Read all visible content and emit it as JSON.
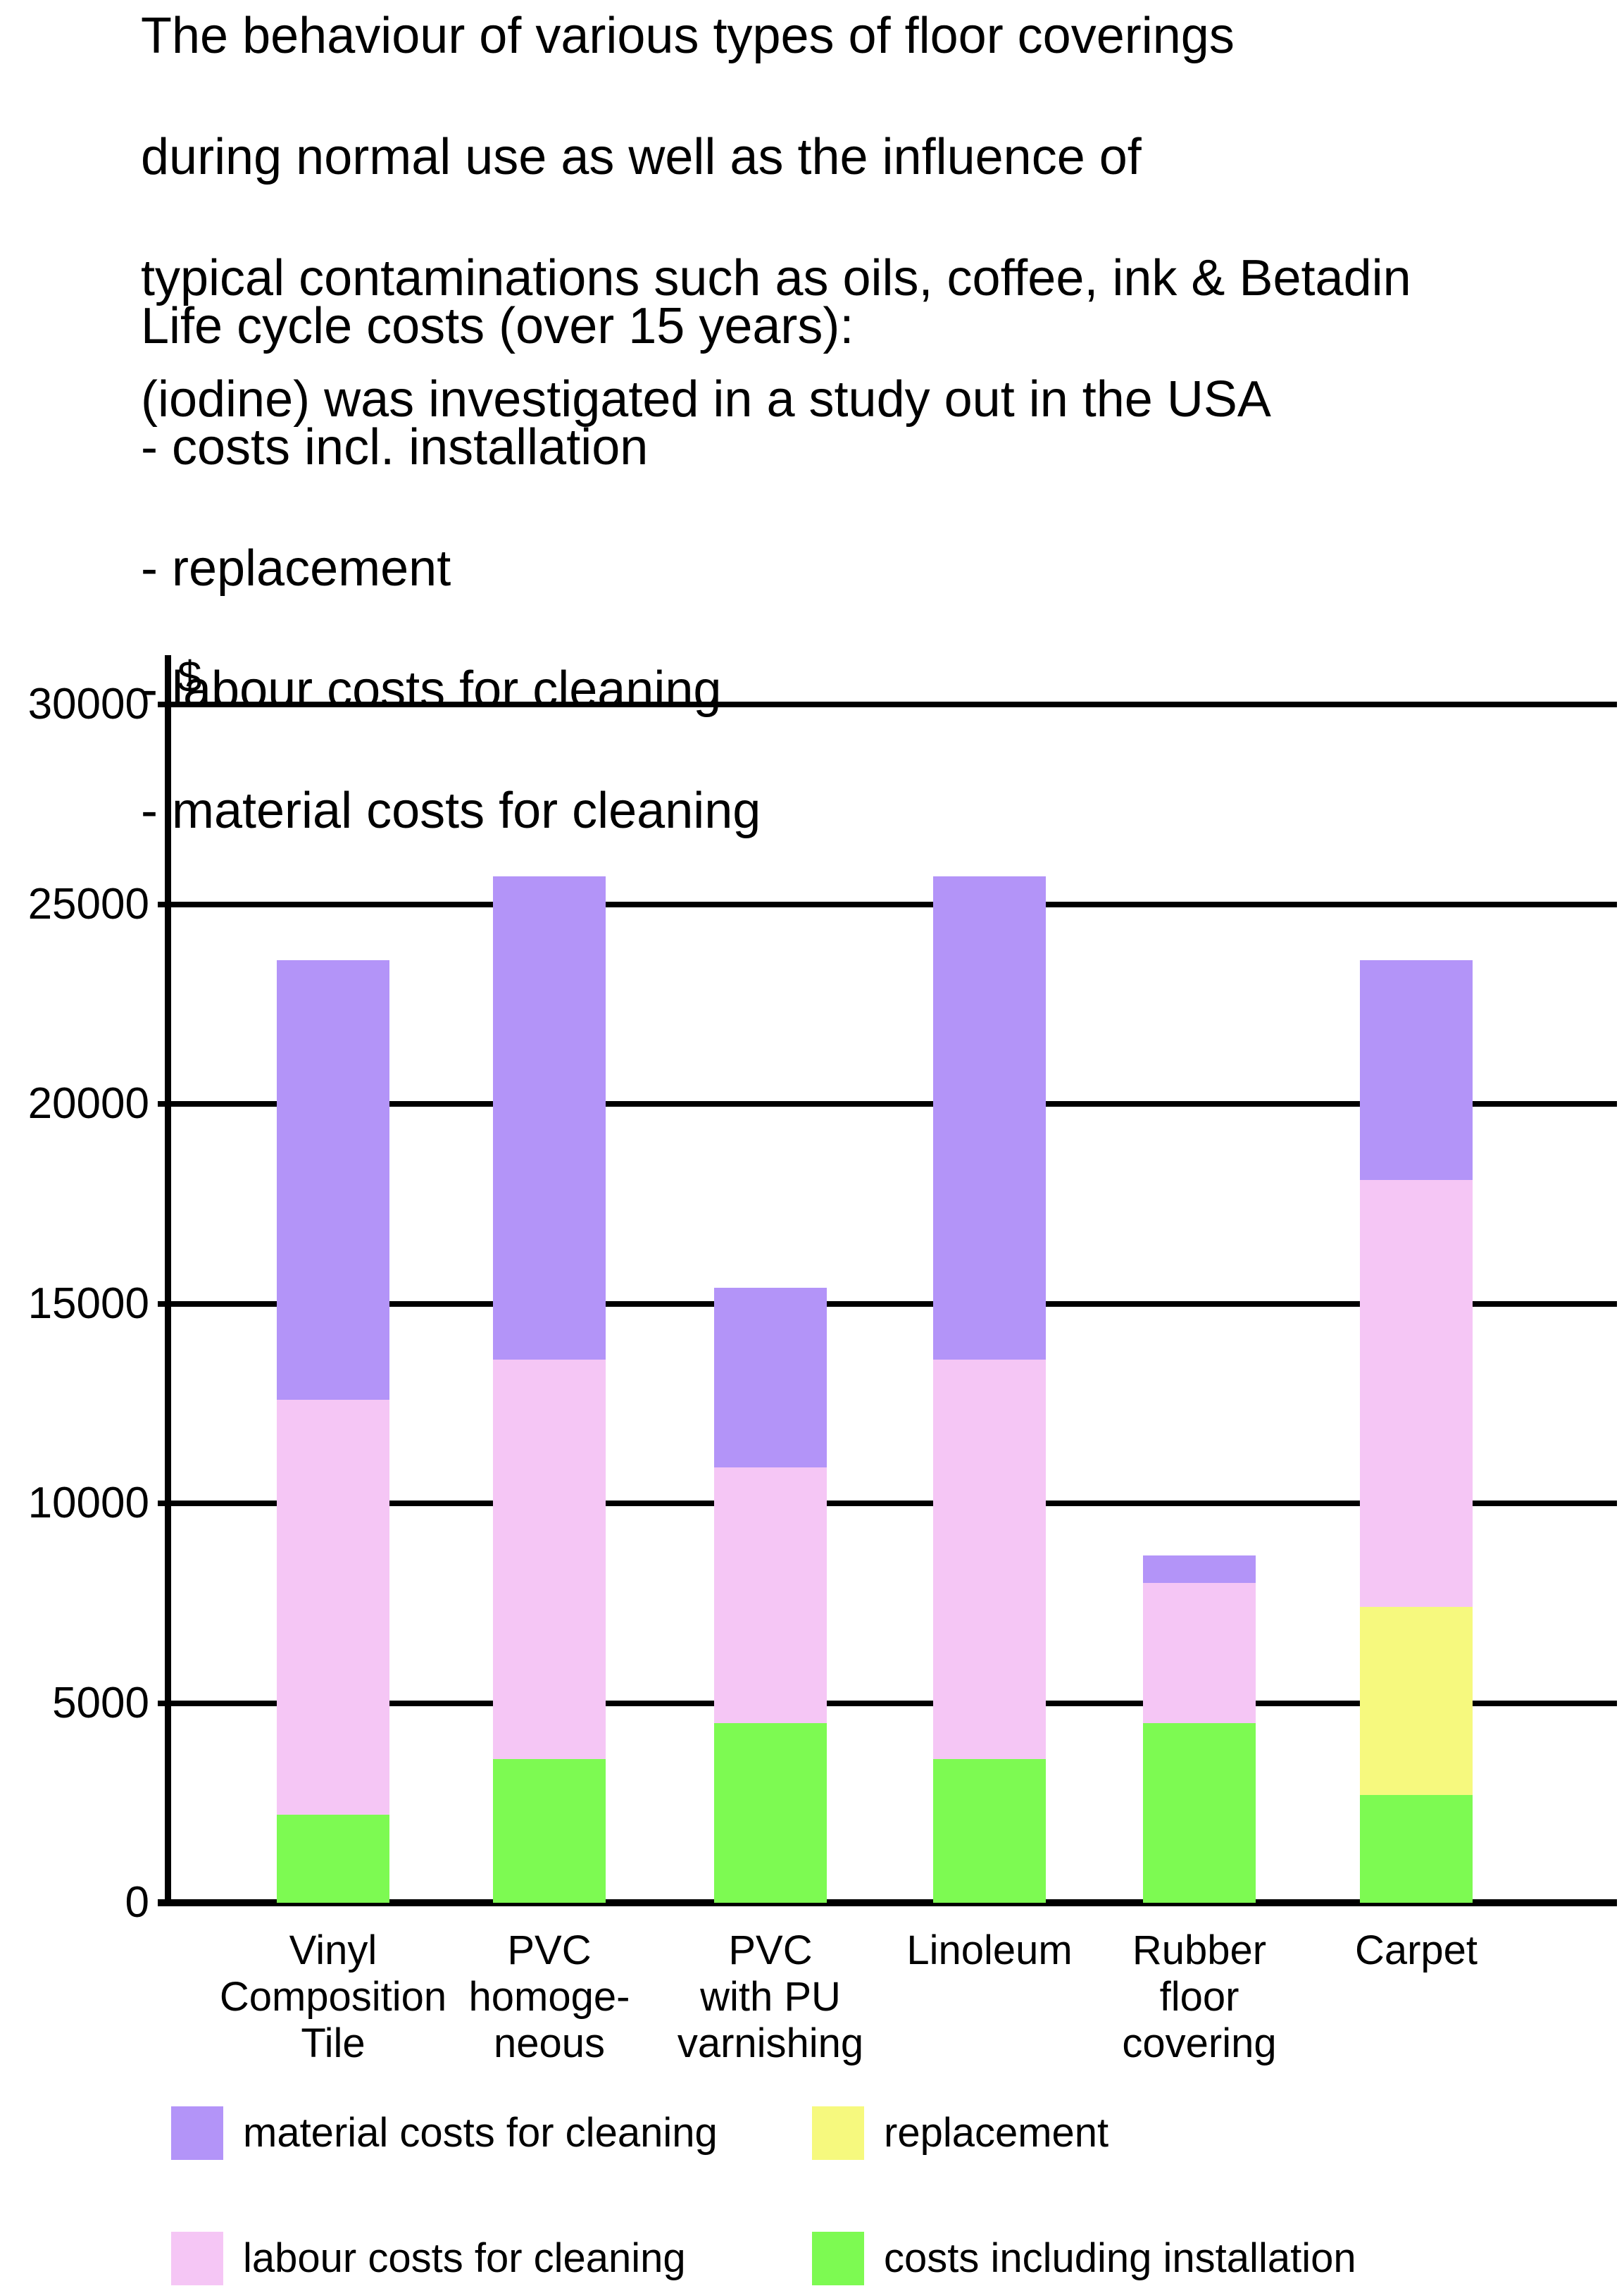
{
  "intro_text": {
    "lines": [
      "The behaviour of various types of floor coverings",
      "during normal use as well as the influence of",
      "typical contaminations such as oils, coffee, ink & Betadin",
      "(iodine) was investigated in a study out in the USA"
    ]
  },
  "costs_text": {
    "heading": "Life cycle costs (over 15 years):",
    "items": [
      "- costs incl. installation",
      "- replacement",
      "- labour costs for cleaning",
      "- material costs for cleaning"
    ]
  },
  "chart_data": {
    "type": "bar",
    "stacked": true,
    "title": "",
    "xlabel": "",
    "ylabel": "$",
    "ylim": [
      0,
      30000
    ],
    "ytick_step": 5000,
    "yticks": [
      0,
      5000,
      10000,
      15000,
      20000,
      25000,
      30000
    ],
    "grid": true,
    "legend_position": "bottom",
    "categories": [
      "Vinyl Composition Tile",
      "PVC homogeneous",
      "PVC with PU varnishing",
      "Linoleum",
      "Rubber floor covering",
      "Carpet"
    ],
    "category_label_lines": [
      [
        "Vinyl",
        "Composition",
        "Tile"
      ],
      [
        "PVC",
        "homoge-",
        "neous"
      ],
      [
        "PVC",
        "with PU",
        "varnishing"
      ],
      [
        "Linoleum"
      ],
      [
        "Rubber",
        "floor",
        "covering"
      ],
      [
        "Carpet"
      ]
    ],
    "series": [
      {
        "name": "costs including installation",
        "color": "#7dfa52",
        "values": [
          2200,
          3600,
          4500,
          3600,
          4500,
          2700
        ]
      },
      {
        "name": "replacement",
        "color": "#f6f97e",
        "values": [
          0,
          0,
          0,
          0,
          0,
          4700
        ]
      },
      {
        "name": "labour costs for cleaning",
        "color": "#f5c6f5",
        "values": [
          10400,
          10000,
          6400,
          10000,
          3500,
          10700
        ]
      },
      {
        "name": "material costs for cleaning",
        "color": "#b394f8",
        "values": [
          11000,
          12100,
          4500,
          12100,
          700,
          5500
        ]
      }
    ],
    "totals": [
      23600,
      25700,
      15400,
      25700,
      8700,
      23600
    ],
    "legend": [
      {
        "label": "material costs for cleaning",
        "color": "#b394f8"
      },
      {
        "label": "replacement",
        "color": "#f6f97e"
      },
      {
        "label": "labour costs for cleaning",
        "color": "#f5c6f5"
      },
      {
        "label": "costs including installation",
        "color": "#7dfa52"
      }
    ]
  }
}
